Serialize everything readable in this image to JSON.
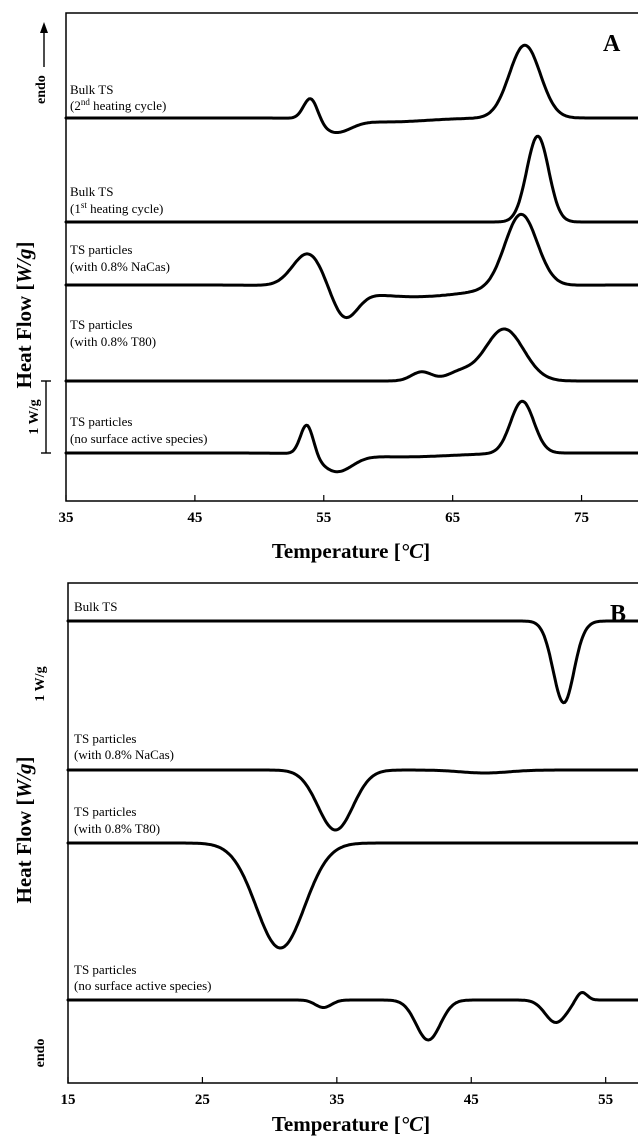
{
  "chart_data": [
    {
      "type": "line",
      "panel": "A",
      "xlabel": "Temperature",
      "xunit": "°C",
      "ylabel": "Heat Flow",
      "yunit": "W/g",
      "xlim": [
        35,
        80
      ],
      "xticks": [
        35,
        45,
        55,
        65,
        75
      ],
      "direction_label": "endo",
      "scale_bar_label": "1 W/g",
      "grid": false,
      "series": [
        {
          "label_line1": "Bulk TS",
          "label_line2_pre": "(2",
          "label_line2_sup": "nd",
          "label_line2_post": " heating cycle)",
          "baseline": 0,
          "features": [
            {
              "center": 54.0,
              "width": 0.55,
              "amplitude": 0.9
            },
            {
              "center": 55.9,
              "width": 1.2,
              "amplitude": -0.5
            },
            {
              "center": 60.0,
              "width": 3.0,
              "amplitude": -0.15
            },
            {
              "center": 70.6,
              "width": 1.2,
              "amplitude": 2.8
            }
          ]
        },
        {
          "label_line1": "Bulk TS",
          "label_line2_pre": "(1",
          "label_line2_sup": "st",
          "label_line2_post": " heating cycle)",
          "baseline": 0,
          "features": [
            {
              "center": 71.6,
              "width": 0.85,
              "amplitude": 3.3
            }
          ]
        },
        {
          "label_line1": "TS particles",
          "label_line2_pre": "(with 0.8% NaCas)",
          "label_line2_sup": "",
          "label_line2_post": "",
          "baseline": 0,
          "features": [
            {
              "center": 53.8,
              "width": 1.2,
              "amplitude": 1.3
            },
            {
              "center": 56.6,
              "width": 1.0,
              "amplitude": -1.1
            },
            {
              "center": 62.0,
              "width": 4.5,
              "amplitude": -0.45
            },
            {
              "center": 70.3,
              "width": 1.25,
              "amplitude": 2.8
            }
          ]
        },
        {
          "label_line1": "TS particles",
          "label_line2_pre": "(with 0.8% T80)",
          "label_line2_sup": "",
          "label_line2_post": "",
          "baseline": 0,
          "features": [
            {
              "center": 62.6,
              "width": 0.8,
              "amplitude": 0.35
            },
            {
              "center": 65.5,
              "width": 1.0,
              "amplitude": 0.3
            },
            {
              "center": 69.0,
              "width": 1.5,
              "amplitude": 2.0
            }
          ]
        },
        {
          "label_line1": "TS particles",
          "label_line2_pre": "(no surface active species)",
          "label_line2_sup": "",
          "label_line2_post": "",
          "baseline": 0,
          "features": [
            {
              "center": 53.7,
              "width": 0.5,
              "amplitude": 1.2
            },
            {
              "center": 56.0,
              "width": 1.2,
              "amplitude": -0.65
            },
            {
              "center": 61.0,
              "width": 4.0,
              "amplitude": -0.15
            },
            {
              "center": 70.4,
              "width": 0.9,
              "amplitude": 2.0
            }
          ]
        }
      ]
    },
    {
      "type": "line",
      "panel": "B",
      "xlabel": "Temperature",
      "xunit": "°C",
      "ylabel": "Heat Flow",
      "yunit": "W/g",
      "xlim": [
        15,
        58
      ],
      "xticks": [
        15,
        25,
        35,
        45,
        55
      ],
      "direction_label": "endo",
      "scale_bar_label": "1 W/g",
      "grid": false,
      "series": [
        {
          "label_line1": "Bulk TS",
          "label_line2_pre": "",
          "baseline": 0,
          "features": [
            {
              "center": 51.9,
              "width": 0.8,
              "amplitude": -3.3
            },
            {
              "center": 52.8,
              "width": 0.5,
              "amplitude": 0.15
            }
          ]
        },
        {
          "label_line1": "TS particles",
          "label_line2_pre": "(with 0.8% NaCas)",
          "baseline": 0,
          "features": [
            {
              "center": 34.9,
              "width": 1.3,
              "amplitude": -2.4
            },
            {
              "center": 46.0,
              "width": 1.8,
              "amplitude": -0.12
            }
          ]
        },
        {
          "label_line1": "TS particles",
          "label_line2_pre": "(with 0.8% T80)",
          "baseline": 0,
          "features": [
            {
              "center": 30.8,
              "width": 1.8,
              "amplitude": -4.2
            }
          ]
        },
        {
          "label_line1": "TS particles",
          "label_line2_pre": "(no surface active species)",
          "baseline": 0,
          "features": [
            {
              "center": 34.0,
              "width": 0.6,
              "amplitude": -0.3
            },
            {
              "center": 41.8,
              "width": 0.9,
              "amplitude": -1.6
            },
            {
              "center": 51.3,
              "width": 0.8,
              "amplitude": -0.9
            },
            {
              "center": 53.2,
              "width": 0.4,
              "amplitude": 0.35
            }
          ]
        }
      ]
    }
  ]
}
